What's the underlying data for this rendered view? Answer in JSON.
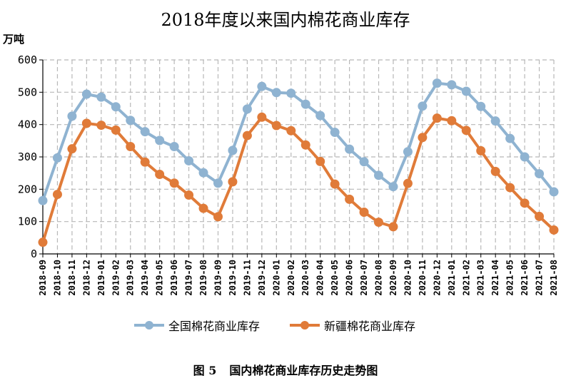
{
  "chart_data": {
    "type": "line",
    "title": "2018年度以来国内棉花商业库存",
    "ylabel": "万吨",
    "xlabel": "",
    "ylim": [
      0,
      600
    ],
    "yticks": [
      0,
      100,
      200,
      300,
      400,
      500,
      600
    ],
    "grid": true,
    "legend": "bottom",
    "categories": [
      "2018-09",
      "2018-10",
      "2018-11",
      "2018-12",
      "2019-01",
      "2019-02",
      "2019-03",
      "2019-04",
      "2019-05",
      "2019-06",
      "2019-07",
      "2019-08",
      "2019-09",
      "2019-10",
      "2019-11",
      "2019-12",
      "2020-01",
      "2020-02",
      "2020-03",
      "2020-04",
      "2020-05",
      "2020-06",
      "2020-07",
      "2020-08",
      "2020-09",
      "2020-10",
      "2020-11",
      "2020-12",
      "2021-01",
      "2021-02",
      "2021-03",
      "2021-04",
      "2021-05",
      "2021-06",
      "2021-07",
      "2021-08"
    ],
    "series": [
      {
        "name": "全国棉花商业库存",
        "color": "#8fb3d1",
        "values": [
          165,
          297,
          426,
          494,
          485,
          455,
          413,
          378,
          351,
          332,
          288,
          251,
          219,
          320,
          448,
          518,
          499,
          497,
          463,
          428,
          376,
          324,
          285,
          243,
          208,
          316,
          457,
          528,
          523,
          503,
          456,
          411,
          357,
          300,
          248,
          192
        ]
      },
      {
        "name": "新疆棉花商业库存",
        "color": "#e07b39",
        "values": [
          36,
          184,
          325,
          404,
          398,
          383,
          332,
          284,
          246,
          219,
          182,
          141,
          115,
          223,
          366,
          423,
          397,
          381,
          337,
          286,
          216,
          169,
          129,
          98,
          84,
          218,
          360,
          420,
          412,
          382,
          319,
          255,
          205,
          157,
          116,
          74
        ]
      }
    ]
  },
  "caption": {
    "figure_no": "图 5",
    "text": "国内棉花商业库存历史走势图"
  }
}
